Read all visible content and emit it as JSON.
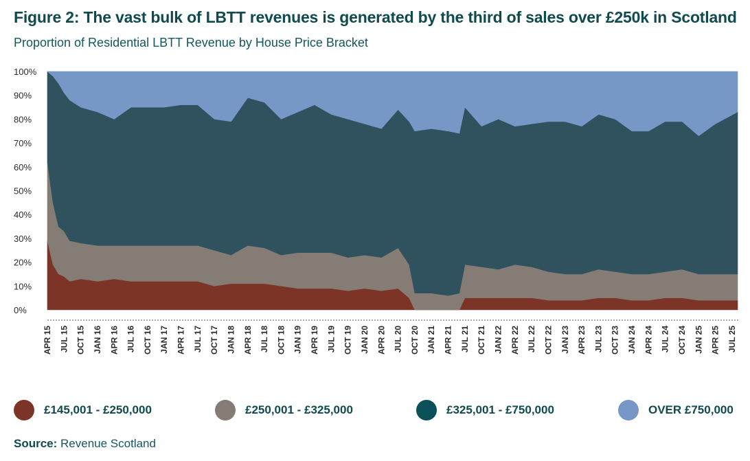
{
  "title": "Figure 2: The vast bulk of LBTT revenues is generated by the third of sales over £250k in Scotland",
  "subtitle": "Proportion of Residential LBTT Revenue by House Price Bracket",
  "source_label": "Source:",
  "source_text": "Revenue Scotland",
  "colors": {
    "band_145_250": "#7b3425",
    "band_250_325": "#857c76",
    "band_325_750": "#2f525e",
    "band_over_750": "#7797c6",
    "axis_text": "#2b2b2b",
    "title": "#0f4a4f"
  },
  "chart_data": {
    "type": "area",
    "stacked": true,
    "yticks": [
      "0%",
      "10%",
      "20%",
      "30%",
      "40%",
      "50%",
      "60%",
      "70%",
      "80%",
      "90%",
      "100%"
    ],
    "ylim": [
      0,
      100
    ],
    "x_tick_labels": [
      "APR 15",
      "JUL 15",
      "OCT 15",
      "JAN 16",
      "APR 16",
      "JUL 16",
      "OCT 16",
      "JAN 17",
      "APR 17",
      "JUL 17",
      "OCT 17",
      "JAN 18",
      "APR 18",
      "JUL 18",
      "OCT 18",
      "JAN 19",
      "APR 19",
      "JUL 19",
      "OCT 19",
      "JAN 20",
      "APR 20",
      "JUL 20",
      "OCT 20",
      "JAN 21",
      "APR 21",
      "JUL 21",
      "OCT 21",
      "JAN 22",
      "APR 22",
      "JUL 22",
      "OCT 22",
      "JAN 23",
      "APR 23",
      "JUL 23",
      "OCT 23",
      "JAN 24",
      "APR 24",
      "JUL 24",
      "OCT 24",
      "JAN 25",
      "APR 25",
      "JUL 25"
    ],
    "x_start": "2015-04",
    "x_end": "2025-08",
    "legend": [
      "£145,001 - £250,000",
      "£250,001 - £325,000",
      "£325,001 - £750,000",
      "OVER £750,000"
    ],
    "series": [
      {
        "name": "£145,001 - £250,000",
        "x": [
          "2015-04",
          "2015-05",
          "2015-06",
          "2015-07",
          "2015-08",
          "2015-10",
          "2016-01",
          "2016-04",
          "2016-07",
          "2016-10",
          "2017-01",
          "2017-04",
          "2017-07",
          "2017-10",
          "2018-01",
          "2018-04",
          "2018-07",
          "2018-10",
          "2019-01",
          "2019-04",
          "2019-07",
          "2019-10",
          "2020-01",
          "2020-04",
          "2020-07",
          "2020-09",
          "2020-10",
          "2021-01",
          "2021-04",
          "2021-06",
          "2021-07",
          "2021-10",
          "2022-01",
          "2022-04",
          "2022-07",
          "2022-10",
          "2023-01",
          "2023-04",
          "2023-07",
          "2023-10",
          "2024-01",
          "2024-04",
          "2024-07",
          "2024-10",
          "2025-01",
          "2025-04",
          "2025-08"
        ],
        "values": [
          29,
          19,
          15,
          14,
          12,
          13,
          12,
          13,
          12,
          12,
          12,
          12,
          12,
          10,
          11,
          11,
          11,
          10,
          9,
          9,
          9,
          8,
          9,
          8,
          9,
          5,
          0,
          0,
          0,
          0,
          5,
          5,
          5,
          5,
          5,
          4,
          4,
          4,
          5,
          5,
          4,
          4,
          5,
          5,
          4,
          4,
          4
        ]
      },
      {
        "name": "£250,001 - £325,000",
        "x": [
          "2015-04",
          "2015-05",
          "2015-06",
          "2015-07",
          "2015-08",
          "2015-10",
          "2016-01",
          "2016-04",
          "2016-07",
          "2016-10",
          "2017-01",
          "2017-04",
          "2017-07",
          "2017-10",
          "2018-01",
          "2018-04",
          "2018-07",
          "2018-10",
          "2019-01",
          "2019-04",
          "2019-07",
          "2019-10",
          "2020-01",
          "2020-04",
          "2020-07",
          "2020-09",
          "2020-10",
          "2021-01",
          "2021-04",
          "2021-06",
          "2021-07",
          "2021-10",
          "2022-01",
          "2022-04",
          "2022-07",
          "2022-10",
          "2023-01",
          "2023-04",
          "2023-07",
          "2023-10",
          "2024-01",
          "2024-04",
          "2024-07",
          "2024-10",
          "2025-01",
          "2025-04",
          "2025-08"
        ],
        "values": [
          33,
          26,
          20,
          19,
          17,
          15,
          15,
          14,
          15,
          15,
          15,
          15,
          15,
          15,
          12,
          16,
          15,
          13,
          15,
          15,
          15,
          14,
          14,
          14,
          17,
          14,
          7,
          7,
          6,
          7,
          14,
          13,
          12,
          14,
          13,
          12,
          11,
          11,
          12,
          11,
          11,
          11,
          11,
          12,
          11,
          11,
          11
        ]
      },
      {
        "name": "£325,001 - £750,000",
        "x": [
          "2015-04",
          "2015-05",
          "2015-06",
          "2015-07",
          "2015-08",
          "2015-10",
          "2016-01",
          "2016-04",
          "2016-07",
          "2016-10",
          "2017-01",
          "2017-04",
          "2017-07",
          "2017-10",
          "2018-01",
          "2018-04",
          "2018-07",
          "2018-10",
          "2019-01",
          "2019-04",
          "2019-07",
          "2019-10",
          "2020-01",
          "2020-04",
          "2020-07",
          "2020-09",
          "2020-10",
          "2021-01",
          "2021-04",
          "2021-06",
          "2021-07",
          "2021-10",
          "2022-01",
          "2022-04",
          "2022-07",
          "2022-10",
          "2023-01",
          "2023-04",
          "2023-07",
          "2023-10",
          "2024-01",
          "2024-04",
          "2024-07",
          "2024-10",
          "2025-01",
          "2025-04",
          "2025-08"
        ],
        "values": [
          38,
          53,
          60,
          58,
          59,
          57,
          56,
          53,
          58,
          58,
          58,
          59,
          59,
          55,
          56,
          62,
          61,
          57,
          59,
          62,
          58,
          58,
          55,
          54,
          58,
          60,
          68,
          69,
          69,
          67,
          66,
          59,
          63,
          58,
          60,
          63,
          64,
          62,
          65,
          64,
          60,
          60,
          63,
          62,
          58,
          63,
          68
        ]
      },
      {
        "name": "OVER £750,000",
        "x": [
          "2015-04",
          "2015-05",
          "2015-06",
          "2015-07",
          "2015-08",
          "2015-10",
          "2016-01",
          "2016-04",
          "2016-07",
          "2016-10",
          "2017-01",
          "2017-04",
          "2017-07",
          "2017-10",
          "2018-01",
          "2018-04",
          "2018-07",
          "2018-10",
          "2019-01",
          "2019-04",
          "2019-07",
          "2019-10",
          "2020-01",
          "2020-04",
          "2020-07",
          "2020-09",
          "2020-10",
          "2021-01",
          "2021-04",
          "2021-06",
          "2021-07",
          "2021-10",
          "2022-01",
          "2022-04",
          "2022-07",
          "2022-10",
          "2023-01",
          "2023-04",
          "2023-07",
          "2023-10",
          "2024-01",
          "2024-04",
          "2024-07",
          "2024-10",
          "2025-01",
          "2025-04",
          "2025-08"
        ],
        "values": [
          0,
          2,
          5,
          9,
          12,
          15,
          17,
          20,
          15,
          15,
          15,
          14,
          14,
          20,
          21,
          11,
          13,
          20,
          17,
          14,
          18,
          20,
          22,
          24,
          16,
          21,
          25,
          24,
          25,
          26,
          15,
          23,
          20,
          23,
          22,
          21,
          21,
          23,
          18,
          20,
          25,
          25,
          21,
          21,
          27,
          22,
          17
        ]
      }
    ]
  }
}
